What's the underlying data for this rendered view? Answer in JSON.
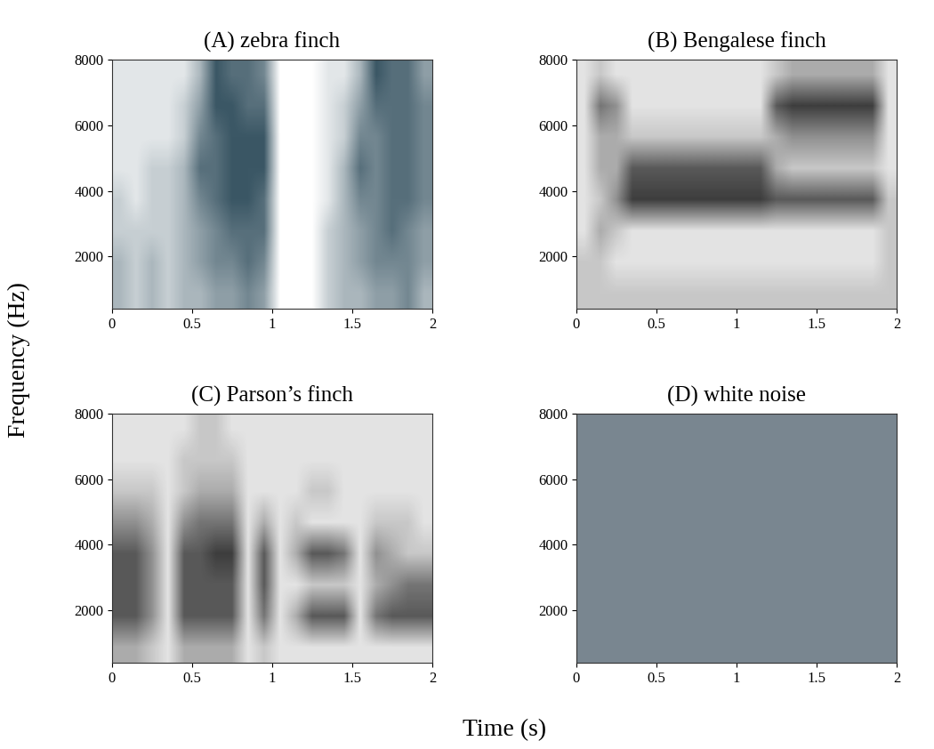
{
  "xlabel": "Time (s)",
  "ylabel": "Frequency (Hz)",
  "chart_data": [
    {
      "type": "heatmap",
      "title": "(A) zebra finch",
      "color": "#1f3f4f",
      "xlim": [
        0,
        2
      ],
      "xticks": [
        0,
        0.5,
        1,
        1.5,
        2
      ],
      "ylim": [
        400,
        8000
      ],
      "yticks": [
        2000,
        4000,
        6000,
        8000
      ],
      "value_range": [
        0,
        8
      ],
      "cells": [
        [
          3,
          2,
          3,
          2,
          3,
          3,
          4,
          4,
          5,
          4,
          0,
          0,
          0,
          2,
          3,
          3,
          4,
          4,
          5,
          3
        ],
        [
          3,
          2,
          3,
          2,
          3,
          4,
          5,
          5,
          6,
          5,
          0,
          0,
          0,
          2,
          3,
          4,
          5,
          5,
          5,
          4
        ],
        [
          2,
          2,
          2,
          2,
          3,
          4,
          5,
          6,
          6,
          6,
          0,
          0,
          0,
          2,
          3,
          4,
          5,
          6,
          5,
          4
        ],
        [
          2,
          1,
          2,
          2,
          3,
          5,
          6,
          7,
          7,
          6,
          0,
          0,
          0,
          1,
          3,
          5,
          5,
          6,
          6,
          5
        ],
        [
          1,
          1,
          2,
          2,
          3,
          6,
          6,
          7,
          7,
          7,
          0,
          0,
          0,
          1,
          3,
          6,
          5,
          6,
          6,
          5
        ],
        [
          1,
          1,
          1,
          1,
          2,
          5,
          6,
          7,
          7,
          7,
          0,
          0,
          0,
          1,
          2,
          5,
          5,
          6,
          6,
          5
        ],
        [
          1,
          1,
          1,
          1,
          2,
          4,
          7,
          7,
          6,
          6,
          0,
          0,
          0,
          1,
          2,
          4,
          6,
          6,
          6,
          5
        ],
        [
          1,
          1,
          1,
          1,
          1,
          3,
          7,
          6,
          6,
          5,
          0,
          0,
          0,
          1,
          1,
          3,
          7,
          6,
          6,
          4
        ]
      ]
    },
    {
      "type": "heatmap",
      "title": "(B) Bengalese finch",
      "color": "#222222",
      "xlim": [
        0,
        2
      ],
      "xticks": [
        0,
        0.5,
        1,
        1.5,
        2
      ],
      "ylim": [
        400,
        8000
      ],
      "yticks": [
        2000,
        4000,
        6000,
        8000
      ],
      "value_range": [
        0,
        8
      ],
      "cells": [
        [
          2,
          2,
          2,
          2,
          2,
          2,
          2,
          2,
          2,
          2,
          2,
          2,
          2,
          2,
          2,
          2,
          2,
          2,
          2,
          2
        ],
        [
          2,
          2,
          1,
          1,
          1,
          1,
          1,
          1,
          1,
          1,
          1,
          1,
          1,
          1,
          1,
          1,
          1,
          1,
          1,
          2
        ],
        [
          1,
          3,
          2,
          1,
          1,
          1,
          1,
          1,
          1,
          1,
          1,
          1,
          1,
          1,
          1,
          1,
          1,
          1,
          1,
          2
        ],
        [
          1,
          2,
          4,
          7,
          7,
          7,
          7,
          7,
          7,
          7,
          7,
          7,
          6,
          6,
          6,
          6,
          6,
          6,
          6,
          2
        ],
        [
          1,
          3,
          3,
          6,
          6,
          6,
          6,
          6,
          6,
          6,
          6,
          6,
          3,
          2,
          2,
          2,
          2,
          2,
          2,
          1
        ],
        [
          1,
          3,
          3,
          2,
          2,
          2,
          2,
          2,
          2,
          2,
          2,
          2,
          3,
          4,
          4,
          4,
          4,
          4,
          4,
          1
        ],
        [
          1,
          5,
          4,
          1,
          1,
          1,
          1,
          1,
          1,
          1,
          1,
          1,
          6,
          7,
          7,
          7,
          7,
          7,
          7,
          1
        ],
        [
          1,
          2,
          1,
          1,
          1,
          1,
          1,
          1,
          1,
          1,
          1,
          1,
          2,
          3,
          3,
          3,
          3,
          3,
          3,
          1
        ]
      ]
    },
    {
      "type": "heatmap",
      "title": "(C) Parson’s finch",
      "color": "#222222",
      "xlim": [
        0,
        2
      ],
      "xticks": [
        0,
        0.5,
        1,
        1.5,
        2
      ],
      "ylim": [
        400,
        8000
      ],
      "yticks": [
        2000,
        4000,
        6000,
        8000
      ],
      "value_range": [
        0,
        8
      ],
      "cells": [
        [
          3,
          3,
          2,
          1,
          3,
          3,
          3,
          3,
          1,
          2,
          1,
          1,
          1,
          1,
          1,
          1,
          1,
          1,
          1,
          1
        ],
        [
          6,
          6,
          4,
          1,
          6,
          6,
          6,
          6,
          1,
          5,
          1,
          3,
          6,
          6,
          6,
          1,
          5,
          6,
          6,
          6
        ],
        [
          6,
          6,
          4,
          1,
          6,
          6,
          6,
          6,
          1,
          6,
          1,
          1,
          2,
          2,
          2,
          1,
          3,
          4,
          5,
          5
        ],
        [
          6,
          6,
          4,
          1,
          6,
          6,
          7,
          7,
          1,
          6,
          1,
          3,
          6,
          6,
          5,
          1,
          4,
          3,
          2,
          2
        ],
        [
          4,
          4,
          3,
          1,
          4,
          5,
          5,
          5,
          1,
          3,
          1,
          2,
          1,
          1,
          1,
          1,
          2,
          2,
          2,
          1
        ],
        [
          2,
          2,
          2,
          1,
          2,
          3,
          3,
          3,
          1,
          1,
          1,
          1,
          2,
          2,
          1,
          1,
          1,
          1,
          1,
          1
        ],
        [
          1,
          1,
          1,
          1,
          2,
          2,
          2,
          2,
          1,
          1,
          1,
          1,
          1,
          1,
          1,
          1,
          1,
          1,
          1,
          1
        ],
        [
          1,
          1,
          1,
          1,
          1,
          2,
          2,
          1,
          1,
          1,
          1,
          1,
          1,
          1,
          1,
          1,
          1,
          1,
          1,
          1
        ]
      ]
    },
    {
      "type": "heatmap",
      "title": "(D) white noise",
      "color": "#2a3f4f",
      "xlim": [
        0,
        2
      ],
      "xticks": [
        0,
        0.5,
        1,
        1.5,
        2
      ],
      "ylim": [
        400,
        8000
      ],
      "yticks": [
        2000,
        4000,
        6000,
        8000
      ],
      "value_range": [
        0,
        8
      ],
      "cells": [
        [
          5,
          5,
          5,
          5,
          5,
          5,
          5,
          5,
          5,
          5,
          5,
          5,
          5,
          5,
          5,
          5,
          5,
          5,
          5,
          5
        ],
        [
          5,
          5,
          5,
          5,
          5,
          5,
          5,
          5,
          5,
          5,
          5,
          5,
          5,
          5,
          5,
          5,
          5,
          5,
          5,
          5
        ],
        [
          5,
          5,
          5,
          5,
          5,
          5,
          5,
          5,
          5,
          5,
          5,
          5,
          5,
          5,
          5,
          5,
          5,
          5,
          5,
          5
        ],
        [
          5,
          5,
          5,
          5,
          5,
          5,
          5,
          5,
          5,
          5,
          5,
          5,
          5,
          5,
          5,
          5,
          5,
          5,
          5,
          5
        ],
        [
          5,
          5,
          5,
          5,
          5,
          5,
          5,
          5,
          5,
          5,
          5,
          5,
          5,
          5,
          5,
          5,
          5,
          5,
          5,
          5
        ],
        [
          5,
          5,
          5,
          5,
          5,
          5,
          5,
          5,
          5,
          5,
          5,
          5,
          5,
          5,
          5,
          5,
          5,
          5,
          5,
          5
        ],
        [
          5,
          5,
          5,
          5,
          5,
          5,
          5,
          5,
          5,
          5,
          5,
          5,
          5,
          5,
          5,
          5,
          5,
          5,
          5,
          5
        ],
        [
          5,
          5,
          5,
          5,
          5,
          5,
          5,
          5,
          5,
          5,
          5,
          5,
          5,
          5,
          5,
          5,
          5,
          5,
          5,
          5
        ]
      ]
    }
  ]
}
